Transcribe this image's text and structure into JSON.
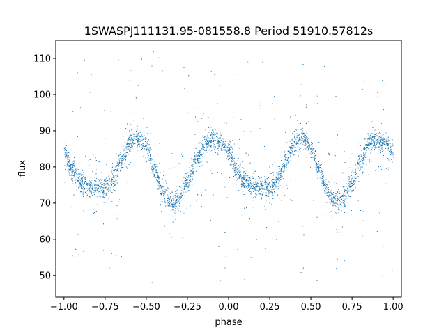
{
  "chart_data": {
    "type": "scatter",
    "title": "1SWASPJ111131.95-081558.8 Period 51910.57812s",
    "xlabel": "phase",
    "ylabel": "flux",
    "xlim": [
      -1.05,
      1.05
    ],
    "ylim": [
      44,
      115
    ],
    "xticks": [
      -1.0,
      -0.75,
      -0.5,
      -0.25,
      0.0,
      0.25,
      0.5,
      0.75,
      1.0
    ],
    "xtick_labels": [
      "−1.00",
      "−0.75",
      "−0.50",
      "−0.25",
      "0.00",
      "0.25",
      "0.50",
      "0.75",
      "1.00"
    ],
    "yticks": [
      50,
      60,
      70,
      80,
      90,
      100,
      110
    ],
    "ytick_labels": [
      "50",
      "60",
      "70",
      "80",
      "90",
      "100",
      "110"
    ],
    "grid": false,
    "point_color": "#1f77b4",
    "phase_range": [
      -1.0,
      1.0
    ],
    "light_curve_profile": {
      "phase": [
        0.0,
        0.05,
        0.1,
        0.15,
        0.2,
        0.25,
        0.3,
        0.35,
        0.4,
        0.45,
        0.5,
        0.55,
        0.6,
        0.65,
        0.7,
        0.75,
        0.8,
        0.85,
        0.9,
        0.95,
        1.0
      ],
      "flux": [
        84,
        79,
        76,
        74.5,
        74,
        74.5,
        77,
        82,
        87,
        88,
        85.5,
        79,
        73,
        70.5,
        71.5,
        76,
        82,
        86.5,
        87.5,
        86.5,
        84
      ]
    }
  }
}
